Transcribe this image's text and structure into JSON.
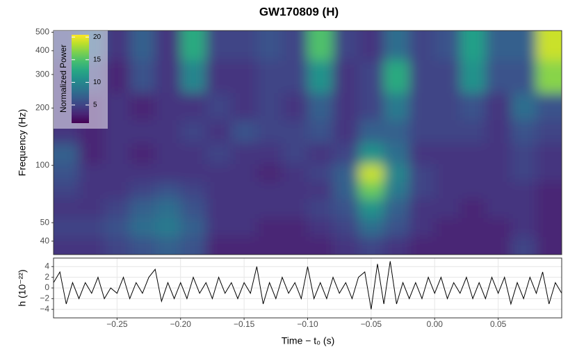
{
  "chart_data": [
    {
      "type": "heatmap",
      "title": "GW170809 (H)",
      "ylabel": "Frequency (Hz)",
      "x": [
        -0.29,
        -0.27,
        -0.25,
        -0.23,
        -0.21,
        -0.19,
        -0.17,
        -0.15,
        -0.13,
        -0.11,
        -0.09,
        -0.07,
        -0.05,
        -0.03,
        -0.01,
        0.01,
        0.03,
        0.05,
        0.07,
        0.09
      ],
      "y": [
        38,
        47,
        60,
        75,
        90,
        115,
        150,
        200,
        290,
        440
      ],
      "values": [
        [
          4,
          4,
          5,
          6,
          7,
          6,
          3,
          3,
          3,
          3,
          3,
          4,
          5,
          4,
          3,
          3,
          3,
          3,
          5,
          3
        ],
        [
          5,
          5,
          6,
          8,
          9,
          7,
          4,
          4,
          3,
          3,
          4,
          5,
          8,
          6,
          4,
          3,
          3,
          3,
          4,
          3
        ],
        [
          4,
          4,
          5,
          7,
          8,
          6,
          4,
          4,
          4,
          4,
          5,
          6,
          11,
          7,
          4,
          4,
          3,
          4,
          4,
          3
        ],
        [
          5,
          4,
          4,
          5,
          6,
          5,
          4,
          4,
          4,
          4,
          4,
          7,
          16,
          9,
          5,
          4,
          4,
          4,
          4,
          3
        ],
        [
          6,
          4,
          4,
          4,
          4,
          4,
          4,
          4,
          3,
          4,
          5,
          7,
          19,
          10,
          5,
          4,
          4,
          4,
          5,
          4
        ],
        [
          7,
          3,
          4,
          3,
          4,
          4,
          5,
          4,
          4,
          5,
          4,
          5,
          11,
          8,
          4,
          4,
          4,
          4,
          5,
          4
        ],
        [
          4,
          3,
          4,
          4,
          4,
          5,
          4,
          6,
          5,
          5,
          6,
          4,
          7,
          7,
          5,
          5,
          5,
          4,
          6,
          5
        ],
        [
          4,
          3,
          4,
          3,
          4,
          4,
          5,
          4,
          5,
          4,
          7,
          4,
          5,
          9,
          5,
          5,
          6,
          4,
          8,
          6
        ],
        [
          4,
          5,
          3,
          6,
          4,
          10,
          4,
          4,
          5,
          5,
          11,
          4,
          5,
          13,
          5,
          5,
          11,
          6,
          6,
          17
        ],
        [
          5,
          7,
          4,
          7,
          4,
          13,
          5,
          5,
          6,
          5,
          15,
          5,
          4,
          8,
          5,
          6,
          12,
          7,
          7,
          19
        ]
      ],
      "xlim": [
        -0.3,
        0.1
      ],
      "ylim": [
        34,
        510
      ],
      "log_y": true,
      "yticks": [
        40,
        50,
        100,
        200,
        300,
        400,
        500
      ],
      "colorbar": {
        "title": "Normalized Power",
        "lim": [
          1,
          20.5
        ],
        "ticks": [
          5,
          10,
          15,
          20
        ]
      }
    },
    {
      "type": "line",
      "xlabel": "Time − t₀ (s)",
      "ylabel": "h (10⁻²²)",
      "color": "#000000",
      "grid": true,
      "x": [
        -0.3,
        -0.295,
        -0.29,
        -0.285,
        -0.28,
        -0.275,
        -0.27,
        -0.265,
        -0.26,
        -0.255,
        -0.25,
        -0.245,
        -0.24,
        -0.235,
        -0.23,
        -0.225,
        -0.22,
        -0.215,
        -0.21,
        -0.205,
        -0.2,
        -0.195,
        -0.19,
        -0.185,
        -0.18,
        -0.175,
        -0.17,
        -0.165,
        -0.16,
        -0.155,
        -0.15,
        -0.145,
        -0.14,
        -0.135,
        -0.13,
        -0.125,
        -0.12,
        -0.115,
        -0.11,
        -0.105,
        -0.1,
        -0.095,
        -0.09,
        -0.085,
        -0.08,
        -0.075,
        -0.07,
        -0.065,
        -0.06,
        -0.055,
        -0.05,
        -0.045,
        -0.04,
        -0.035,
        -0.03,
        -0.025,
        -0.02,
        -0.015,
        -0.01,
        -0.005,
        0,
        0.005,
        0.01,
        0.015,
        0.02,
        0.025,
        0.03,
        0.035,
        0.04,
        0.045,
        0.05,
        0.055,
        0.06,
        0.065,
        0.07,
        0.075,
        0.08,
        0.085,
        0.09,
        0.095,
        0.1
      ],
      "values": [
        1,
        3,
        -3,
        1,
        -2,
        1,
        -1,
        2,
        -2,
        0,
        -1,
        2,
        -2,
        1,
        -1,
        2,
        3.5,
        -2.5,
        1,
        -2,
        1,
        -2,
        2,
        -1,
        1,
        -2,
        2,
        -1,
        1,
        -2,
        1,
        -1,
        4,
        -3,
        1,
        -2,
        2,
        -1,
        1,
        -2,
        4,
        -2,
        1,
        -2,
        2,
        -1,
        1,
        -2,
        2,
        3,
        -4,
        4.5,
        -3,
        5,
        -3,
        1,
        -2,
        1,
        -2,
        2,
        -1,
        2,
        -2,
        1,
        -1,
        2,
        -2,
        1,
        -2,
        2,
        -1,
        2,
        -3,
        1,
        -2,
        2,
        -1,
        3,
        -3,
        1,
        -1
      ],
      "xlim": [
        -0.3,
        0.1
      ],
      "xticks": [
        {
          "value": -0.25,
          "label": "−0.25"
        },
        {
          "value": -0.2,
          "label": "−0.20"
        },
        {
          "value": -0.15,
          "label": "−0.15"
        },
        {
          "value": -0.1,
          "label": "−0.10"
        },
        {
          "value": -0.05,
          "label": "−0.05"
        },
        {
          "value": 0,
          "label": "0.00"
        },
        0.05
      ],
      "ylim": [
        -5.6,
        5.6
      ],
      "yticks": [
        {
          "value": -4,
          "label": "−4"
        },
        {
          "value": -2,
          "label": "−2"
        },
        0,
        2,
        4
      ]
    }
  ]
}
